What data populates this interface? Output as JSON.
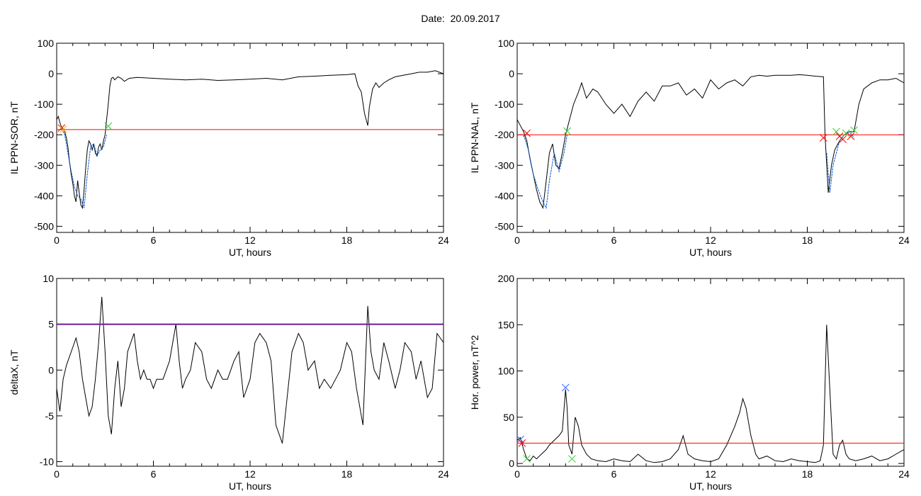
{
  "title": {
    "label": "Date:",
    "value": "20.09.2017"
  },
  "chart_data": [
    {
      "type": "line",
      "xlabel": "UT, hours",
      "ylabel": "IL PPN-SOR, nT",
      "xlim": [
        0,
        24
      ],
      "ylim": [
        -520,
        100
      ],
      "xticks": [
        0,
        6,
        12,
        18,
        24
      ],
      "yticks": [
        100,
        0,
        -100,
        -200,
        -300,
        -400,
        -500
      ],
      "threshold": {
        "value": -183,
        "color": "#ff0000"
      },
      "series": [
        {
          "color": "#000000",
          "x": [
            0,
            0.1,
            0.2,
            0.3,
            0.4,
            0.5,
            0.6,
            0.7,
            0.8,
            0.9,
            1.0,
            1.1,
            1.2,
            1.3,
            1.4,
            1.5,
            1.6,
            1.7,
            1.8,
            1.9,
            2.0,
            2.1,
            2.2,
            2.3,
            2.4,
            2.5,
            2.6,
            2.7,
            2.8,
            2.9,
            3.0,
            3.1,
            3.2,
            3.3,
            3.4,
            3.5,
            3.6,
            3.8,
            4.0,
            4.2,
            4.5,
            5,
            6,
            7,
            8,
            9,
            10,
            11,
            12,
            13,
            14,
            15,
            16,
            17,
            18,
            18.5,
            18.7,
            18.9,
            19.1,
            19.3,
            19.4,
            19.5,
            19.6,
            19.8,
            20.0,
            20.3,
            20.6,
            21,
            21.5,
            22,
            22.5,
            23,
            23.5,
            24
          ],
          "y": [
            -150,
            -140,
            -160,
            -175,
            -180,
            -190,
            -210,
            -240,
            -290,
            -330,
            -360,
            -400,
            -420,
            -350,
            -390,
            -430,
            -440,
            -380,
            -310,
            -250,
            -220,
            -230,
            -250,
            -230,
            -260,
            -270,
            -240,
            -230,
            -250,
            -220,
            -200,
            -150,
            -100,
            -40,
            -15,
            -12,
            -20,
            -10,
            -15,
            -25,
            -15,
            -12,
            -15,
            -18,
            -20,
            -18,
            -22,
            -20,
            -18,
            -15,
            -20,
            -10,
            -8,
            -5,
            -3,
            0,
            -40,
            -60,
            -130,
            -170,
            -110,
            -80,
            -50,
            -30,
            -45,
            -30,
            -20,
            -10,
            -5,
            0,
            5,
            5,
            10,
            0
          ]
        },
        {
          "color": "#0055cc",
          "x": [
            0.3,
            0.5,
            0.7,
            0.9,
            1.1,
            1.3,
            1.5,
            1.7,
            1.9,
            2.1,
            2.3,
            2.5,
            2.7,
            2.9,
            3.1
          ],
          "y": [
            -180,
            -200,
            -260,
            -320,
            -370,
            -400,
            -410,
            -440,
            -330,
            -240,
            -230,
            -270,
            -250,
            -240,
            -200
          ]
        }
      ],
      "markers": [
        {
          "x": 0.3,
          "y": -178,
          "color": "#ff0000"
        },
        {
          "x": 0.4,
          "y": -182,
          "color": "#ffaa00"
        },
        {
          "x": 3.2,
          "y": -172,
          "color": "#33cc33"
        }
      ]
    },
    {
      "type": "line",
      "xlabel": "UT, hours",
      "ylabel": "IL PPN-NAL, nT",
      "xlim": [
        0,
        24
      ],
      "ylim": [
        -520,
        100
      ],
      "xticks": [
        0,
        6,
        12,
        18,
        24
      ],
      "yticks": [
        100,
        0,
        -100,
        -200,
        -300,
        -400,
        -500
      ],
      "threshold": {
        "value": -200,
        "color": "#ff0000"
      },
      "series": [
        {
          "color": "#000000",
          "x": [
            0,
            0.2,
            0.4,
            0.6,
            0.8,
            1.0,
            1.2,
            1.4,
            1.6,
            1.8,
            2.0,
            2.2,
            2.4,
            2.6,
            2.8,
            3.0,
            3.2,
            3.5,
            3.8,
            4.0,
            4.3,
            4.7,
            5.0,
            5.5,
            6.0,
            6.5,
            7.0,
            7.5,
            8.0,
            8.5,
            9,
            9.5,
            10,
            10.5,
            11,
            11.5,
            12,
            12.5,
            13,
            13.5,
            14,
            14.5,
            15,
            15.5,
            16,
            16.5,
            17,
            17.5,
            18,
            18.5,
            19.0,
            19.1,
            19.3,
            19.5,
            19.7,
            20.0,
            20.3,
            20.6,
            20.9,
            21.2,
            21.5,
            22,
            22.5,
            23,
            23.5,
            24
          ],
          "y": [
            -150,
            -170,
            -190,
            -220,
            -280,
            -330,
            -380,
            -420,
            -440,
            -350,
            -260,
            -230,
            -300,
            -310,
            -260,
            -200,
            -160,
            -100,
            -60,
            -30,
            -80,
            -50,
            -60,
            -100,
            -130,
            -100,
            -140,
            -90,
            -60,
            -90,
            -40,
            -40,
            -30,
            -70,
            -50,
            -80,
            -20,
            -50,
            -30,
            -20,
            -40,
            -10,
            -5,
            -8,
            -5,
            -5,
            -5,
            -3,
            -5,
            -8,
            -10,
            -200,
            -390,
            -300,
            -250,
            -220,
            -200,
            -190,
            -190,
            -100,
            -50,
            -30,
            -20,
            -20,
            -15,
            -30
          ]
        },
        {
          "color": "#0055cc",
          "x": [
            0.4,
            0.7,
            1.0,
            1.3,
            1.6,
            1.8,
            2.0,
            2.3,
            2.6,
            2.9,
            3.1,
            19.2,
            19.4,
            19.6,
            19.8,
            20.0,
            20.3,
            20.6,
            20.9
          ],
          "y": [
            -200,
            -250,
            -330,
            -380,
            -420,
            -440,
            -350,
            -260,
            -320,
            -260,
            -200,
            -260,
            -390,
            -300,
            -260,
            -220,
            -200,
            -190,
            -210
          ]
        }
      ],
      "markers": [
        {
          "x": 0.6,
          "y": -195,
          "color": "#ff0000"
        },
        {
          "x": 3.1,
          "y": -188,
          "color": "#33cc33"
        },
        {
          "x": 19.0,
          "y": -210,
          "color": "#ff0000"
        },
        {
          "x": 19.8,
          "y": -190,
          "color": "#33cc33"
        },
        {
          "x": 20.0,
          "y": -205,
          "color": "#ff0000"
        },
        {
          "x": 20.2,
          "y": -215,
          "color": "#ff0000"
        },
        {
          "x": 20.4,
          "y": -195,
          "color": "#33cc33"
        },
        {
          "x": 20.7,
          "y": -205,
          "color": "#ff0000"
        },
        {
          "x": 20.9,
          "y": -185,
          "color": "#33cc33"
        }
      ]
    },
    {
      "type": "line",
      "xlabel": "UT, hours",
      "ylabel": "deltaX, nT",
      "xlim": [
        0,
        24
      ],
      "ylim": [
        -10.5,
        10
      ],
      "xticks": [
        0,
        6,
        12,
        18,
        24
      ],
      "yticks": [
        10,
        5,
        0,
        -5,
        -10
      ],
      "threshold": {
        "value": 5,
        "color": "#6a1b9a"
      },
      "series": [
        {
          "color": "#000000",
          "x": [
            0,
            0.2,
            0.4,
            0.6,
            0.8,
            1.0,
            1.2,
            1.4,
            1.6,
            1.8,
            2.0,
            2.2,
            2.4,
            2.6,
            2.8,
            3.0,
            3.2,
            3.4,
            3.6,
            3.8,
            4.0,
            4.2,
            4.4,
            4.6,
            4.8,
            5.0,
            5.2,
            5.4,
            5.6,
            5.8,
            6.0,
            6.2,
            6.4,
            6.6,
            6.8,
            7.0,
            7.2,
            7.4,
            7.6,
            7.8,
            8.0,
            8.3,
            8.6,
            9.0,
            9.3,
            9.6,
            10,
            10.3,
            10.6,
            11,
            11.3,
            11.6,
            12,
            12.3,
            12.6,
            13,
            13.3,
            13.6,
            14,
            14.3,
            14.6,
            15,
            15.3,
            15.6,
            16,
            16.3,
            16.6,
            17,
            17.3,
            17.6,
            18,
            18.3,
            18.6,
            19,
            19.3,
            19.5,
            19.7,
            20,
            20.3,
            20.6,
            21,
            21.3,
            21.6,
            22,
            22.3,
            22.6,
            23,
            23.3,
            23.6,
            24
          ],
          "y": [
            -2,
            -4.5,
            -1,
            0.5,
            1.5,
            2.5,
            3.5,
            2,
            -1,
            -3,
            -5,
            -4,
            -1,
            3,
            8,
            2,
            -5,
            -7,
            -2,
            1,
            -4,
            -2,
            2,
            3,
            4,
            1,
            -1,
            0,
            -1,
            -1,
            -2,
            -1,
            -1,
            -1,
            0,
            1,
            3,
            5,
            1,
            -2,
            -1,
            0,
            3,
            2,
            -1,
            -2,
            0,
            -1,
            -1,
            1,
            2,
            -3,
            -1,
            3,
            4,
            3,
            1,
            -6,
            -8,
            -3,
            2,
            4,
            3,
            0,
            1,
            -2,
            -1,
            -2,
            -1,
            0,
            3,
            2,
            -2,
            -6,
            7,
            2,
            0,
            -1,
            3,
            1,
            -2,
            0,
            3,
            2,
            -1,
            1,
            -3,
            -2,
            4,
            3
          ]
        }
      ],
      "markers": []
    },
    {
      "type": "line",
      "xlabel": "UT, hours",
      "ylabel": "Hor. power, nT^2",
      "xlim": [
        0,
        24
      ],
      "ylim": [
        -3,
        200
      ],
      "xticks": [
        0,
        6,
        12,
        18,
        24
      ],
      "yticks": [
        200,
        150,
        100,
        50,
        0
      ],
      "threshold": {
        "value": 22,
        "color": "#ff0000"
      },
      "series": [
        {
          "color": "#000000",
          "x": [
            0,
            0.2,
            0.4,
            0.6,
            0.8,
            1.0,
            1.2,
            1.5,
            1.8,
            2.0,
            2.3,
            2.6,
            2.8,
            3.0,
            3.1,
            3.2,
            3.4,
            3.6,
            3.8,
            4.0,
            4.3,
            4.6,
            5,
            5.5,
            6,
            6.5,
            7,
            7.5,
            8,
            8.5,
            9,
            9.5,
            10,
            10.3,
            10.6,
            11,
            11.5,
            12,
            12.5,
            13,
            13.5,
            13.8,
            14.0,
            14.2,
            14.5,
            14.8,
            15,
            15.5,
            16,
            16.5,
            17,
            17.5,
            18,
            18.5,
            18.8,
            19.0,
            19.2,
            19.4,
            19.6,
            19.8,
            20.0,
            20.2,
            20.4,
            20.6,
            21,
            21.5,
            22,
            22.5,
            23,
            23.5,
            24
          ],
          "y": [
            25,
            28,
            15,
            5,
            3,
            8,
            5,
            10,
            15,
            20,
            25,
            30,
            35,
            80,
            60,
            20,
            10,
            50,
            40,
            20,
            10,
            5,
            3,
            2,
            5,
            3,
            2,
            10,
            3,
            1,
            2,
            5,
            15,
            30,
            10,
            5,
            3,
            2,
            5,
            20,
            40,
            55,
            70,
            60,
            30,
            10,
            5,
            8,
            3,
            2,
            5,
            3,
            2,
            1,
            3,
            20,
            150,
            80,
            10,
            5,
            20,
            25,
            10,
            5,
            3,
            5,
            8,
            3,
            5,
            10,
            15
          ]
        }
      ],
      "markers": [
        {
          "x": 0.2,
          "y": 26,
          "color": "#3366ff"
        },
        {
          "x": 0.3,
          "y": 22,
          "color": "#ff0000"
        },
        {
          "x": 3.0,
          "y": 82,
          "color": "#3366ff"
        },
        {
          "x": 3.4,
          "y": 5,
          "color": "#33cc33"
        },
        {
          "x": 0.6,
          "y": 5,
          "color": "#33cc33"
        }
      ]
    }
  ]
}
